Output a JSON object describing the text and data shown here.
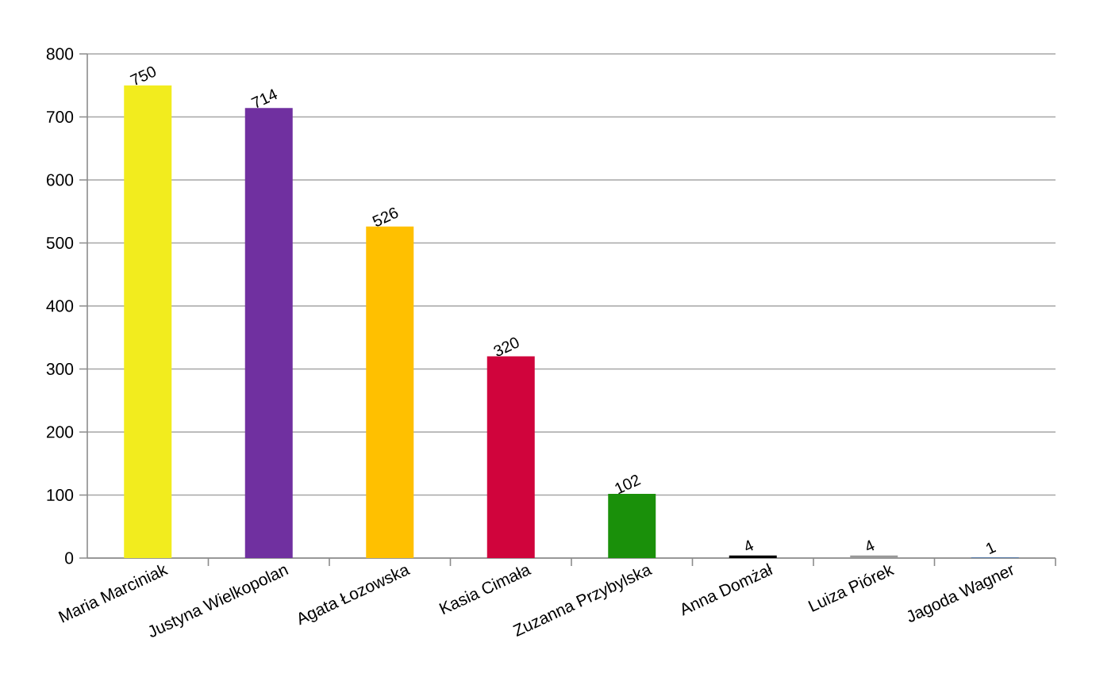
{
  "chart_data": {
    "type": "bar",
    "categories": [
      "Maria Marciniak",
      "Justyna Wielkopolan",
      "Agata Łozowska",
      "Kasia Cimała",
      "Zuzanna Przybylska",
      "Anna Domżał",
      "Luiza Piórek",
      "Jagoda Wagner"
    ],
    "values": [
      750,
      714,
      526,
      320,
      102,
      4,
      4,
      1
    ],
    "colors": [
      "#f2ec1e",
      "#7030a0",
      "#ffc000",
      "#d0043c",
      "#1a900a",
      "#000000",
      "#999999",
      "#3f6ea8"
    ],
    "ylim": [
      0,
      800
    ],
    "yticks": [
      0,
      100,
      200,
      300,
      400,
      500,
      600,
      700,
      800
    ],
    "grid": "y",
    "data_labels": true
  }
}
